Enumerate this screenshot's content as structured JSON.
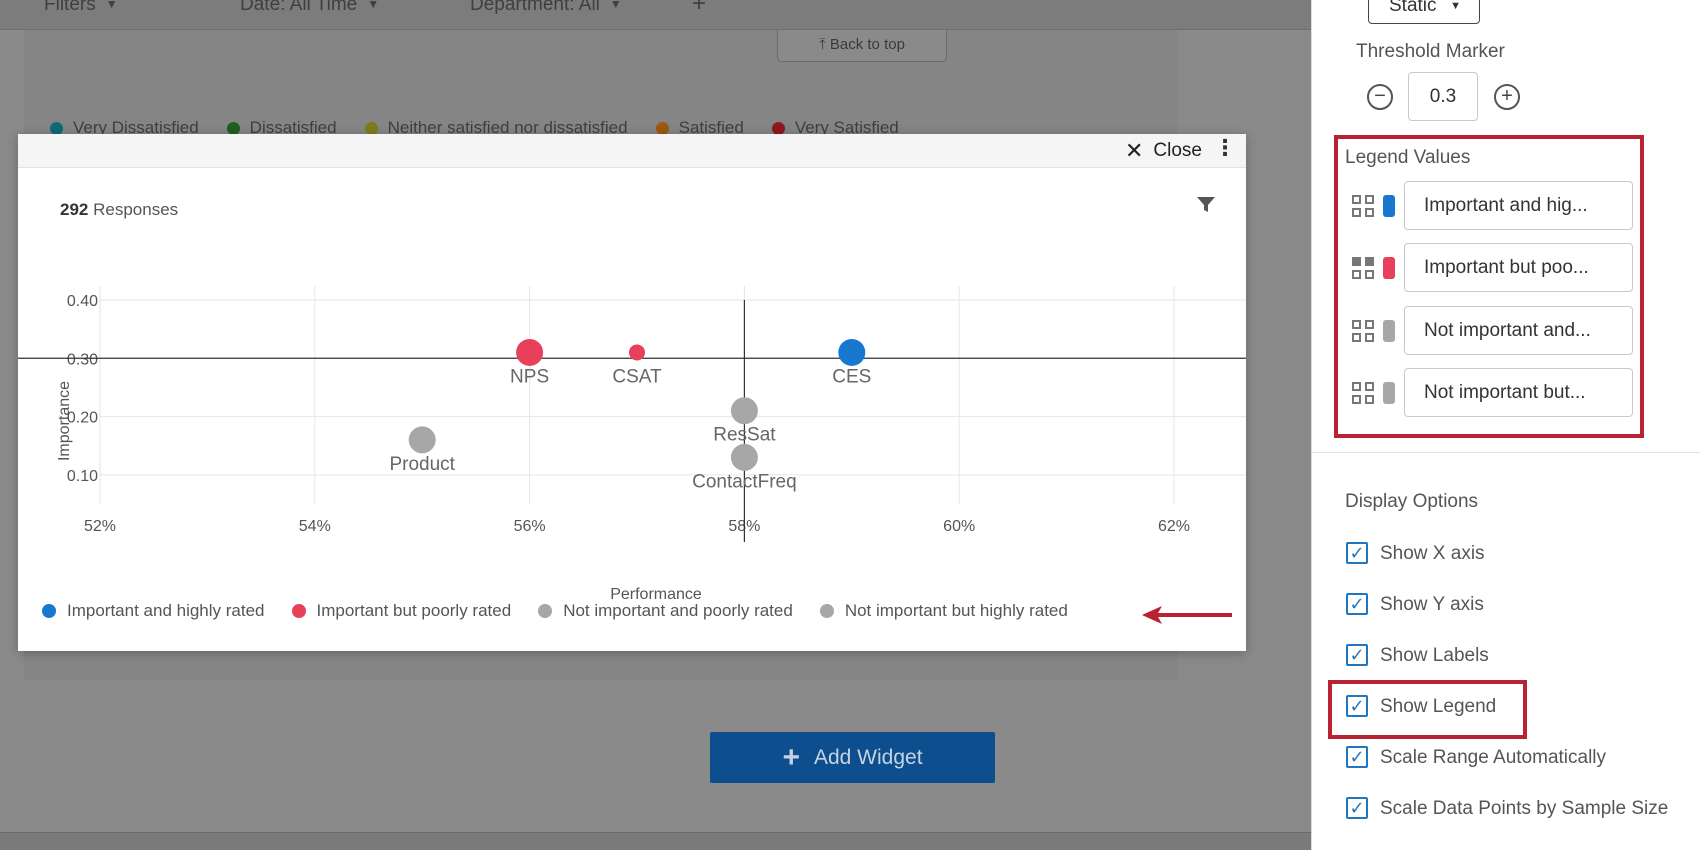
{
  "background": {
    "filters": [
      {
        "label": "Filters"
      },
      {
        "label": "Date: All Time"
      },
      {
        "label": "Department: All"
      },
      {
        "label": "+"
      }
    ],
    "back_to_top": "⤒ Back to top",
    "legend": [
      {
        "label": "Very Dissatisfied",
        "color": "#0e6a7a"
      },
      {
        "label": "Dissatisfied",
        "color": "#1f5e22"
      },
      {
        "label": "Neither satisfied nor dissatisfied",
        "color": "#7c7c1c"
      },
      {
        "label": "Satisfied",
        "color": "#9a5a10"
      },
      {
        "label": "Very Satisfied",
        "color": "#8c1a1e"
      }
    ],
    "add_widget": "Add Widget"
  },
  "modal": {
    "close_label": "Close",
    "menu_icon": "kebab-icon",
    "responses_count": "292",
    "responses_label": "Responses",
    "filter_icon": "filter-icon",
    "legend": [
      {
        "label": "Important and highly rated",
        "color": "#1878d0"
      },
      {
        "label": "Important but poorly rated",
        "color": "#e8405a"
      },
      {
        "label": "Not important and poorly rated",
        "color": "#a7a7a7"
      },
      {
        "label": "Not important but highly rated",
        "color": "#a7a7a7"
      }
    ]
  },
  "chart_data": {
    "type": "scatter",
    "xlabel": "Performance",
    "ylabel": "Importance",
    "xlim": [
      52,
      62
    ],
    "ylim": [
      0.05,
      0.4
    ],
    "x_ticks": [
      52,
      54,
      56,
      58,
      60,
      62
    ],
    "x_tick_labels": [
      "52%",
      "54%",
      "56%",
      "58%",
      "60%",
      "62%"
    ],
    "y_ticks": [
      0.1,
      0.2,
      0.3,
      0.4
    ],
    "y_tick_labels": [
      "0.10",
      "0.20",
      "0.30",
      "0.40"
    ],
    "threshold_x": 58,
    "threshold_y": 0.3,
    "grid": true,
    "points": [
      {
        "label": "NPS",
        "x": 56,
        "y": 0.31,
        "size": "large",
        "color": "#e8405a"
      },
      {
        "label": "CSAT",
        "x": 57,
        "y": 0.31,
        "size": "small",
        "color": "#e8405a"
      },
      {
        "label": "CES",
        "x": 59,
        "y": 0.31,
        "size": "large",
        "color": "#1878d0"
      },
      {
        "label": "ResSat",
        "x": 58,
        "y": 0.21,
        "size": "large",
        "color": "#a7a7a7"
      },
      {
        "label": "Product",
        "x": 55,
        "y": 0.16,
        "size": "large",
        "color": "#a7a7a7"
      },
      {
        "label": "ContactFreq",
        "x": 58,
        "y": 0.13,
        "size": "large",
        "color": "#a7a7a7"
      }
    ]
  },
  "sidebar": {
    "static_select": "Static",
    "threshold_label": "Threshold Marker",
    "threshold_value": "0.3",
    "legend_values_label": "Legend Values",
    "legend_values": [
      {
        "text": "Important and hig...",
        "color": "#1878d0"
      },
      {
        "text": "Important but poo...",
        "color": "#e8405a"
      },
      {
        "text": "Not important and...",
        "color": "#a7a7a7"
      },
      {
        "text": "Not important but...",
        "color": "#a7a7a7"
      }
    ],
    "display_options_label": "Display Options",
    "options": [
      {
        "label": "Show X axis",
        "checked": true
      },
      {
        "label": "Show Y axis",
        "checked": true
      },
      {
        "label": "Show Labels",
        "checked": true
      },
      {
        "label": "Show Legend",
        "checked": true
      },
      {
        "label": "Scale Range Automatically",
        "checked": true
      },
      {
        "label": "Scale Data Points by Sample Size",
        "checked": true
      }
    ]
  }
}
